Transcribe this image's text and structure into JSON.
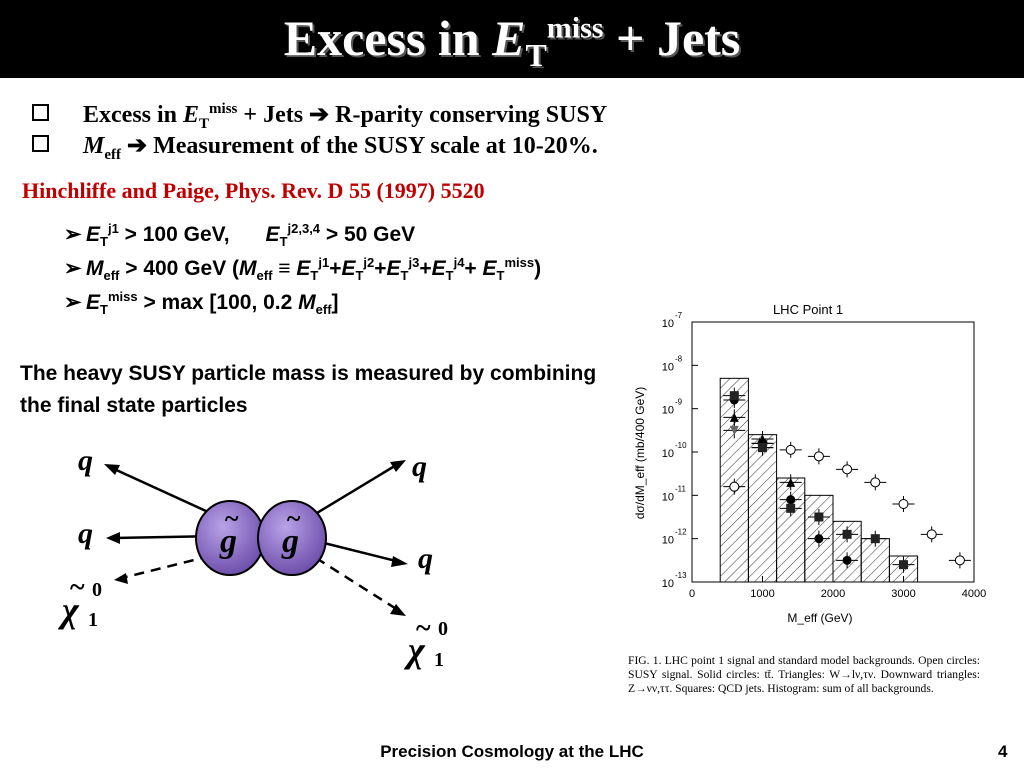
{
  "slide": {
    "title": {
      "prefix": "Excess in ",
      "e": "E",
      "sub": "T",
      "sup": "miss",
      "suffix": " + Jets"
    },
    "bullets": [
      {
        "prefix": "Excess in ",
        "e": "E",
        "sub": "T",
        "sup": "miss",
        "suffix": " + Jets ➔ R-parity conserving SUSY"
      },
      {
        "m": "M",
        "sub": "eff",
        "suffix": " ➔ Measurement of the SUSY scale at 10-20%."
      }
    ],
    "reference": "Hinchliffe and Paige, Phys. Rev. D 55 (1997) 5520",
    "cuts": {
      "cut1": {
        "e1": "E",
        "s1": "T",
        "p1": "j1",
        "t1": " > 100 GeV,",
        "e2": "E",
        "s2": "T",
        "p2": "j2,3,4",
        "t2": " > 50 GeV"
      },
      "cut2": {
        "m": "M",
        "ms": "eff",
        "t1": " > 400 GeV (",
        "m2": "M",
        "ms2": "eff",
        "t2": " ≡ ",
        "e": "E",
        "s": "T",
        "j1": "j1",
        "j2": "j2",
        "j3": "j3",
        "j4": "j4",
        "miss": "miss",
        "plus": "+",
        "close": ")"
      },
      "cut3": {
        "e": "E",
        "s": "T",
        "sup": "miss",
        "t1": " > max [100, 0.2 ",
        "m": "M",
        "ms": "eff",
        "t2": "]"
      }
    },
    "heavy_text": "The heavy  SUSY particle mass is measured by combining the final state particles",
    "diagram": {
      "quark": "q",
      "gluino": "g",
      "tilde": "~",
      "chi": "χ",
      "chi_sub": "1",
      "chi_sup": "0"
    },
    "caption": "FIG. 1.  LHC point 1 signal and standard model backgrounds. Open circles: SUSY signal. Solid circles: tt̄. Triangles: W→lν,τν. Downward triangles: Z→νν,ττ. Squares: QCD jets. Histogram: sum of all backgrounds.",
    "footer": "Precision Cosmology at the LHC",
    "page_number": "4"
  },
  "chart_data": {
    "type": "scatter",
    "title": "LHC Point 1",
    "xlabel": "M_eff (GeV)",
    "ylabel": "dσ/dM_eff (mb/400 GeV)",
    "xlim": [
      0,
      4000
    ],
    "ylim_log10": [
      -13,
      -7
    ],
    "x_ticks": [
      "0",
      "1000",
      "2000",
      "3000",
      "4000"
    ],
    "y_ticks": [
      {
        "base": "10",
        "exp": "-7"
      },
      {
        "base": "10",
        "exp": "-8"
      },
      {
        "base": "10",
        "exp": "-9"
      },
      {
        "base": "10",
        "exp": "-10"
      },
      {
        "base": "10",
        "exp": "-11"
      },
      {
        "base": "10",
        "exp": "-12"
      },
      {
        "base": "10",
        "exp": "-13"
      }
    ],
    "histogram": {
      "edges": [
        400,
        800,
        1200,
        1600,
        2000,
        2400,
        2800,
        3200
      ],
      "log10_values": [
        -8.3,
        -9.6,
        -10.6,
        -11.0,
        -11.6,
        -12.0,
        -12.4
      ]
    },
    "series": [
      {
        "name": "SUSY signal",
        "marker": "open-circle",
        "points": [
          [
            600,
            -10.8
          ],
          [
            1000,
            -9.8
          ],
          [
            1400,
            -9.95
          ],
          [
            1800,
            -10.1
          ],
          [
            2200,
            -10.4
          ],
          [
            2600,
            -10.7
          ],
          [
            3000,
            -11.2
          ],
          [
            3400,
            -11.9
          ],
          [
            3800,
            -12.5
          ]
        ]
      },
      {
        "name": "tt̄",
        "marker": "filled-circle",
        "points": [
          [
            600,
            -8.8
          ],
          [
            1000,
            -9.8
          ],
          [
            1400,
            -11.1
          ],
          [
            1800,
            -12.0
          ],
          [
            2200,
            -12.5
          ]
        ]
      },
      {
        "name": "W→lν,τν",
        "marker": "triangle",
        "points": [
          [
            600,
            -9.2
          ],
          [
            1000,
            -9.7
          ],
          [
            1400,
            -10.7
          ]
        ]
      },
      {
        "name": "Z→νν,ττ",
        "marker": "down-triangle",
        "points": [
          [
            600,
            -9.5
          ],
          [
            1000,
            -9.9
          ]
        ]
      },
      {
        "name": "QCD jets",
        "marker": "square",
        "points": [
          [
            600,
            -8.7
          ],
          [
            1000,
            -9.9
          ],
          [
            1400,
            -11.3
          ],
          [
            1800,
            -11.5
          ],
          [
            2200,
            -11.9
          ],
          [
            2600,
            -12.0
          ],
          [
            3000,
            -12.6
          ]
        ]
      }
    ]
  }
}
